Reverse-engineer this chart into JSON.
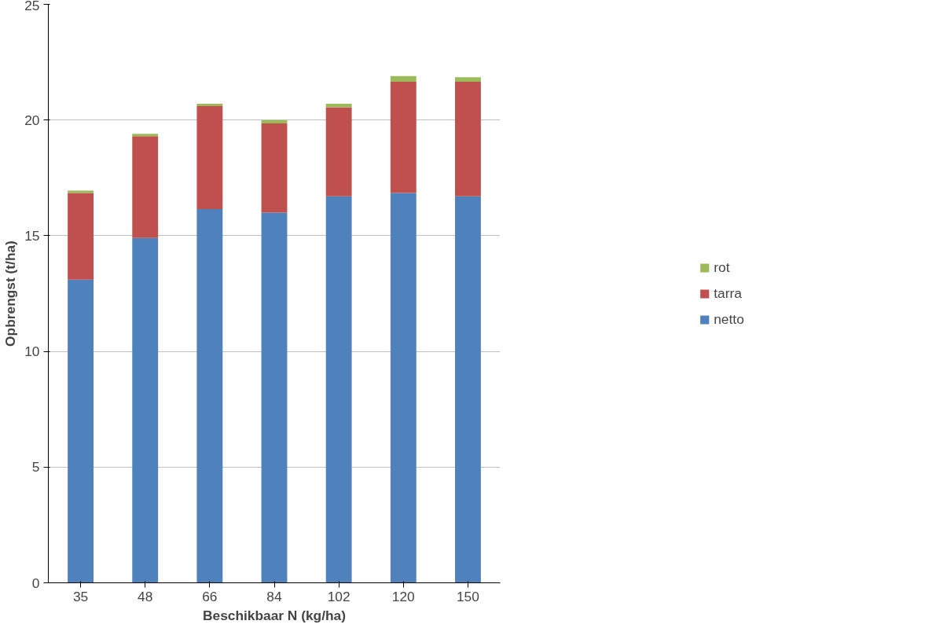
{
  "chart_data": {
    "type": "bar",
    "stacked": true,
    "xlabel": "Beschikbaar N (kg/ha)",
    "ylabel": "Opbrengst (t/ha)",
    "categories": [
      "35",
      "48",
      "66",
      "84",
      "102",
      "120",
      "150"
    ],
    "series": [
      {
        "name": "netto",
        "color": "#4f81bd",
        "values": [
          13.1,
          14.9,
          16.15,
          16.0,
          16.7,
          16.85,
          16.7
        ]
      },
      {
        "name": "tarra",
        "color": "#c0504d",
        "values": [
          3.75,
          4.4,
          4.45,
          3.85,
          3.85,
          4.8,
          4.95
        ]
      },
      {
        "name": "rot",
        "color": "#9bbb59",
        "values": [
          0.1,
          0.1,
          0.1,
          0.15,
          0.15,
          0.25,
          0.2
        ]
      }
    ],
    "ylim": [
      0,
      25
    ],
    "yticks": [
      0,
      5,
      10,
      15,
      20,
      25
    ],
    "grid": "y",
    "legend": "right"
  }
}
